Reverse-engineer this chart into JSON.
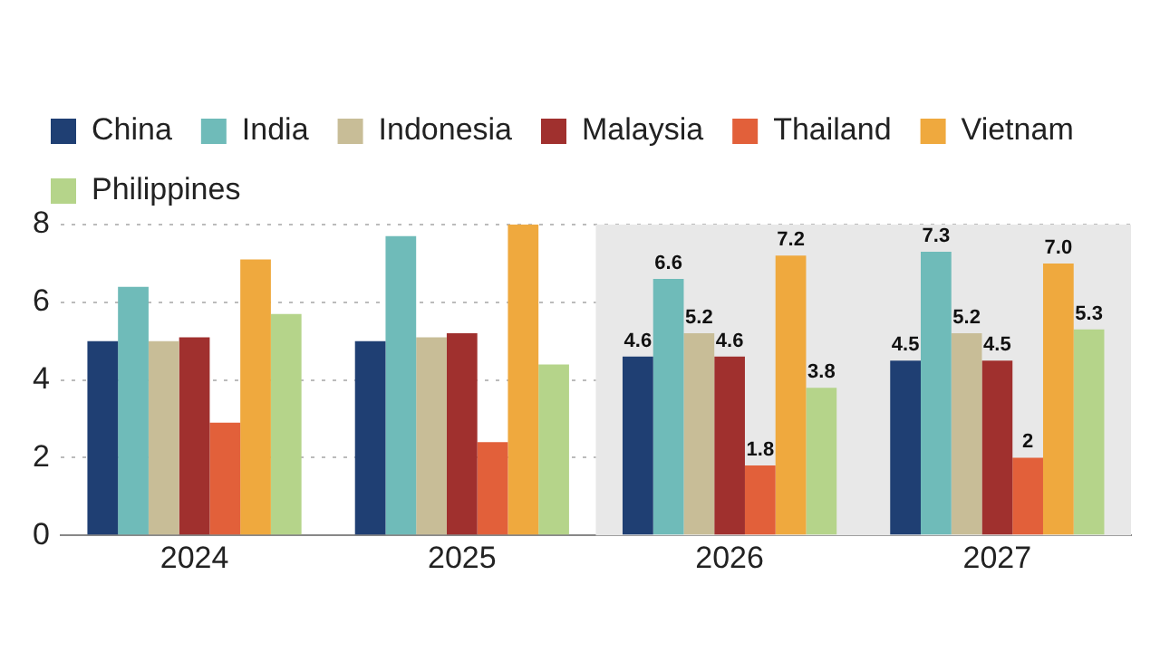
{
  "chart_data": {
    "type": "bar",
    "categories": [
      "2024",
      "2025",
      "2026",
      "2027"
    ],
    "series": [
      {
        "name": "China",
        "color": "#1f3f73",
        "values": [
          5.0,
          5.0,
          4.6,
          4.5
        ],
        "value_labels": [
          null,
          null,
          "4.6",
          "4.5"
        ]
      },
      {
        "name": "India",
        "color": "#6fbbb9",
        "values": [
          6.4,
          7.7,
          6.6,
          7.3
        ],
        "value_labels": [
          null,
          null,
          "6.6",
          "7.3"
        ]
      },
      {
        "name": "Indonesia",
        "color": "#c8bd97",
        "values": [
          5.0,
          5.1,
          5.2,
          5.2
        ],
        "value_labels": [
          null,
          null,
          "5.2",
          "5.2"
        ]
      },
      {
        "name": "Malaysia",
        "color": "#a0302e",
        "values": [
          5.1,
          5.2,
          4.6,
          4.5
        ],
        "value_labels": [
          null,
          null,
          "4.6",
          "4.5"
        ]
      },
      {
        "name": "Thailand",
        "color": "#e2603a",
        "values": [
          2.9,
          2.4,
          1.8,
          2
        ],
        "value_labels": [
          null,
          null,
          "1.8",
          "2"
        ]
      },
      {
        "name": "Vietnam",
        "color": "#efa93e",
        "values": [
          7.1,
          8.0,
          7.2,
          7.0
        ],
        "value_labels": [
          null,
          null,
          "7.2",
          "7.0"
        ]
      },
      {
        "name": "Philippines",
        "color": "#b5d48a",
        "values": [
          5.7,
          4.4,
          3.8,
          5.3
        ],
        "value_labels": [
          null,
          null,
          "3.8",
          "5.3"
        ]
      }
    ],
    "ylim": [
      0,
      8
    ],
    "yticks": [
      0,
      2,
      4,
      6,
      8
    ],
    "grid": "y",
    "legend": "top",
    "bands": [
      {
        "axis": "x",
        "from": "2026",
        "to": "2027",
        "color": "#e8e8e8"
      }
    ]
  }
}
